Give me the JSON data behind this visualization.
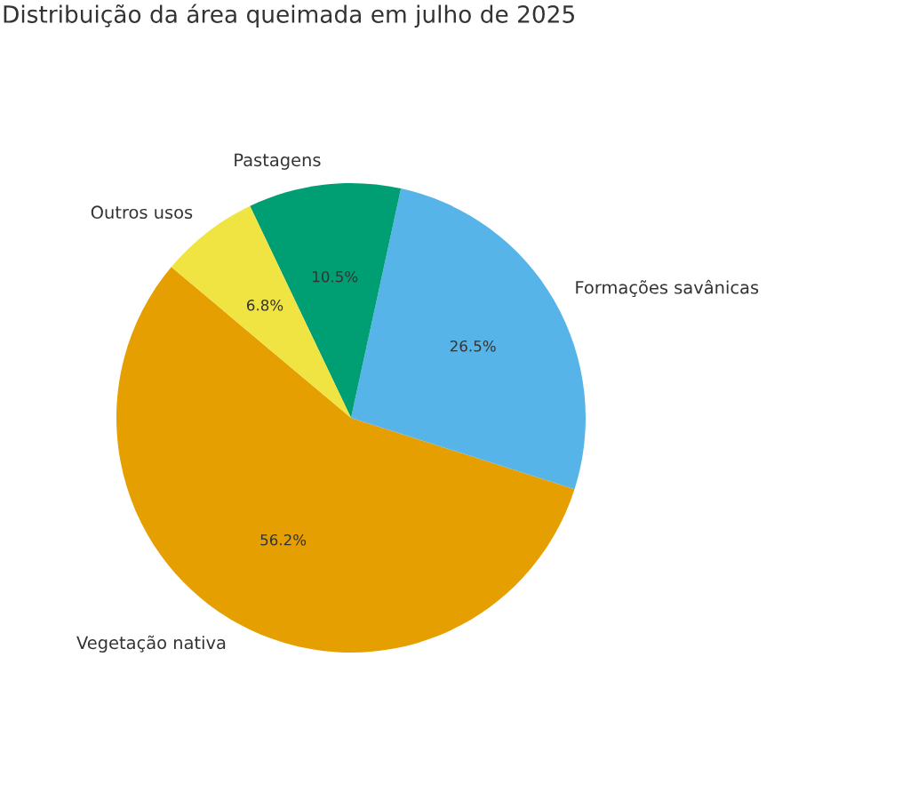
{
  "chart_data": {
    "type": "pie",
    "title": "Distribuição da área queimada em julho de 2025",
    "categories": [
      "Vegetação nativa",
      "Formações savânicas",
      "Pastagens",
      "Outros usos"
    ],
    "values": [
      56.2,
      26.5,
      10.5,
      6.8
    ],
    "colors": [
      "#e69f00",
      "#56b4e9",
      "#009e73",
      "#f0e442"
    ],
    "value_labels": [
      "56.2%",
      "26.5%",
      "10.5%",
      "6.8%"
    ],
    "legend": false
  }
}
